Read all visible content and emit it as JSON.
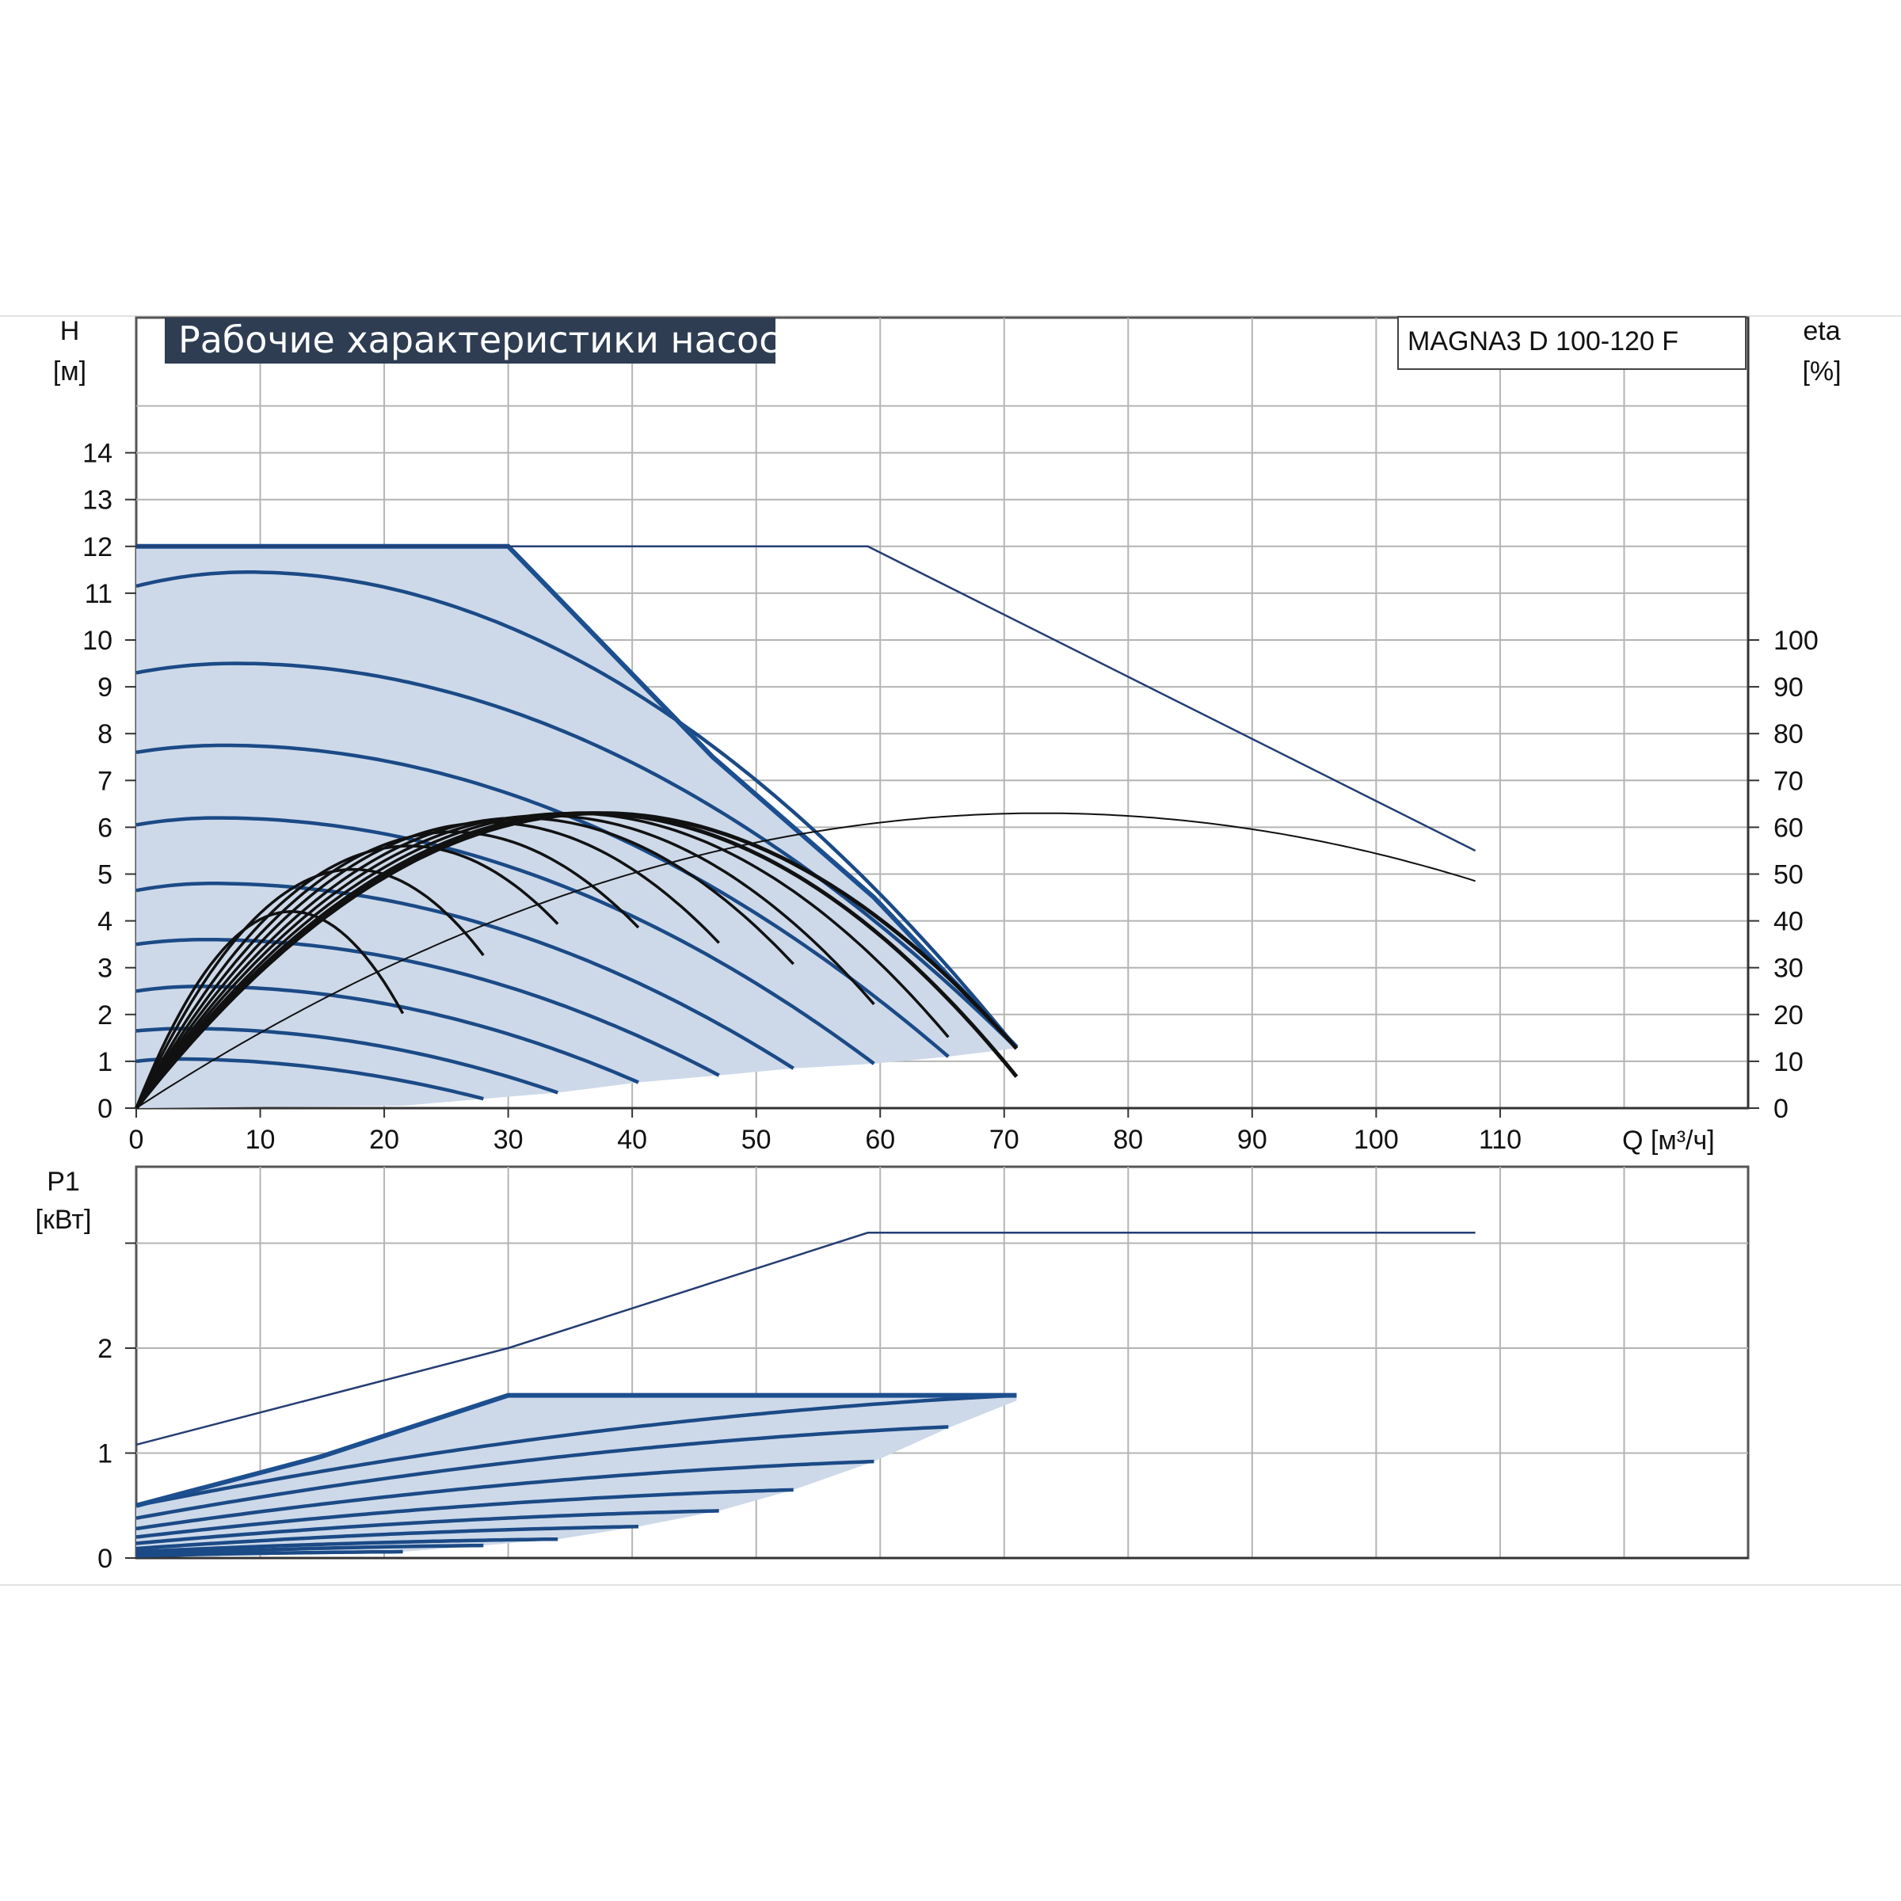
{
  "chart_data": [
    {
      "type": "line",
      "title": "Рабочие характеристики насоса",
      "model_label": "MAGNA3 D 100-120 F",
      "ylabel": "H",
      "ylabel_unit": "[м]",
      "y2label": "eta",
      "y2label_unit": "[%]",
      "xlabel": "Q [м³/ч]",
      "xlim": [
        0,
        130
      ],
      "ylim": [
        0,
        14
      ],
      "y2lim": [
        0,
        100
      ],
      "x_ticks": [
        "0",
        "10",
        "20",
        "30",
        "40",
        "50",
        "60",
        "70",
        "80",
        "90",
        "100",
        "110"
      ],
      "y_ticks": [
        "0",
        "1",
        "2",
        "3",
        "4",
        "5",
        "6",
        "7",
        "8",
        "9",
        "10",
        "11",
        "12",
        "13",
        "14"
      ],
      "y2_ticks": [
        "0",
        "10",
        "20",
        "30",
        "40",
        "50",
        "60",
        "70",
        "80",
        "90",
        "100"
      ],
      "grid": true,
      "colors": {
        "single_curves": "#1b4a86",
        "single_envelope": "#1c4f8f",
        "operating_area": "#cdd9e9",
        "efficiency": "#111111",
        "twin_operation": "#243d73",
        "grid": "#b4b4b4",
        "title_box": "#2e3d52"
      },
      "head_envelope_single": {
        "x": [
          0,
          30,
          46.5,
          59.5,
          71
        ],
        "y": [
          12,
          12,
          7.5,
          4.5,
          1.3
        ]
      },
      "head_envelope_twin": {
        "x": [
          0,
          59,
          108
        ],
        "y": [
          12,
          12,
          5.5
        ]
      },
      "operating_area_bottom": {
        "x": [
          0,
          21.5,
          28,
          34,
          40.5,
          47,
          53,
          59.5,
          65.5,
          71
        ],
        "y": [
          0,
          0.05,
          0.2,
          0.33,
          0.55,
          0.7,
          0.85,
          0.95,
          1.1,
          1.28
        ]
      },
      "head_curves_single": [
        {
          "h0": 11.15,
          "hmax": 11.45,
          "xmax": 9,
          "x_end": 71
        },
        {
          "h0": 9.3,
          "hmax": 9.5,
          "xmax": 8,
          "x_end": 71
        },
        {
          "h0": 7.6,
          "hmax": 7.75,
          "xmax": 7,
          "x_end": 65.5
        },
        {
          "h0": 6.05,
          "hmax": 6.2,
          "xmax": 6.5,
          "x_end": 59.5
        },
        {
          "h0": 4.65,
          "hmax": 4.8,
          "xmax": 6,
          "x_end": 53
        },
        {
          "h0": 3.5,
          "hmax": 3.6,
          "xmax": 5.5,
          "x_end": 47
        },
        {
          "h0": 2.5,
          "hmax": 2.6,
          "xmax": 5,
          "x_end": 40.5
        },
        {
          "h0": 1.65,
          "hmax": 1.7,
          "xmax": 4,
          "x_end": 34
        },
        {
          "h0": 1.0,
          "hmax": 1.05,
          "xmax": 3,
          "x_end": 28
        }
      ],
      "efficiency_curves_single": [
        {
          "qpk": 12.5,
          "etapk": 42,
          "x_end": 21.5
        },
        {
          "qpk": 17.5,
          "etapk": 51,
          "x_end": 28
        },
        {
          "qpk": 22,
          "etapk": 56,
          "x_end": 34
        },
        {
          "qpk": 25.5,
          "etapk": 59,
          "x_end": 40.5
        },
        {
          "qpk": 28.5,
          "etapk": 61,
          "x_end": 47
        },
        {
          "qpk": 31,
          "etapk": 62,
          "x_end": 53
        },
        {
          "qpk": 33,
          "etapk": 62.5,
          "x_end": 59.5
        },
        {
          "qpk": 35,
          "etapk": 63,
          "x_end": 65.5
        },
        {
          "qpk": 36.5,
          "etapk": 63,
          "x_end": 71
        },
        {
          "qpk": 37.5,
          "etapk": 63,
          "x_end": 71
        }
      ],
      "efficiency_twin": {
        "qpk": 73,
        "etapk": 63,
        "x_end": 108
      }
    },
    {
      "type": "line",
      "ylabel": "P1",
      "ylabel_unit": "[кВт]",
      "xlim": [
        0,
        130
      ],
      "ylim": [
        0,
        3
      ],
      "y_ticks": [
        "0",
        "1",
        "2"
      ],
      "grid": true,
      "power_envelope_single": {
        "x": [
          0,
          15,
          30,
          71
        ],
        "y": [
          0.5,
          0.97,
          1.55,
          1.55
        ]
      },
      "power_envelope_twin": {
        "x": [
          0,
          30,
          59,
          108
        ],
        "y": [
          1.08,
          2.0,
          3.1,
          3.1
        ]
      },
      "power_area_bottom": {
        "x": [
          0,
          21.5,
          28,
          34,
          40.5,
          47,
          53,
          59.5,
          65.5,
          71
        ],
        "y": [
          0.02,
          0.06,
          0.12,
          0.18,
          0.3,
          0.45,
          0.65,
          0.92,
          1.24,
          1.5
        ]
      },
      "power_curves_single": [
        {
          "p0": 0.5,
          "p_end": 1.55,
          "x_end": 71
        },
        {
          "p0": 0.38,
          "p_end": 1.25,
          "x_end": 65.5
        },
        {
          "p0": 0.28,
          "p_end": 0.92,
          "x_end": 59.5
        },
        {
          "p0": 0.2,
          "p_end": 0.65,
          "x_end": 53
        },
        {
          "p0": 0.14,
          "p_end": 0.45,
          "x_end": 47
        },
        {
          "p0": 0.09,
          "p_end": 0.3,
          "x_end": 40.5
        },
        {
          "p0": 0.06,
          "p_end": 0.18,
          "x_end": 34
        },
        {
          "p0": 0.035,
          "p_end": 0.12,
          "x_end": 28
        },
        {
          "p0": 0.02,
          "p_end": 0.06,
          "x_end": 21.5
        }
      ]
    }
  ]
}
